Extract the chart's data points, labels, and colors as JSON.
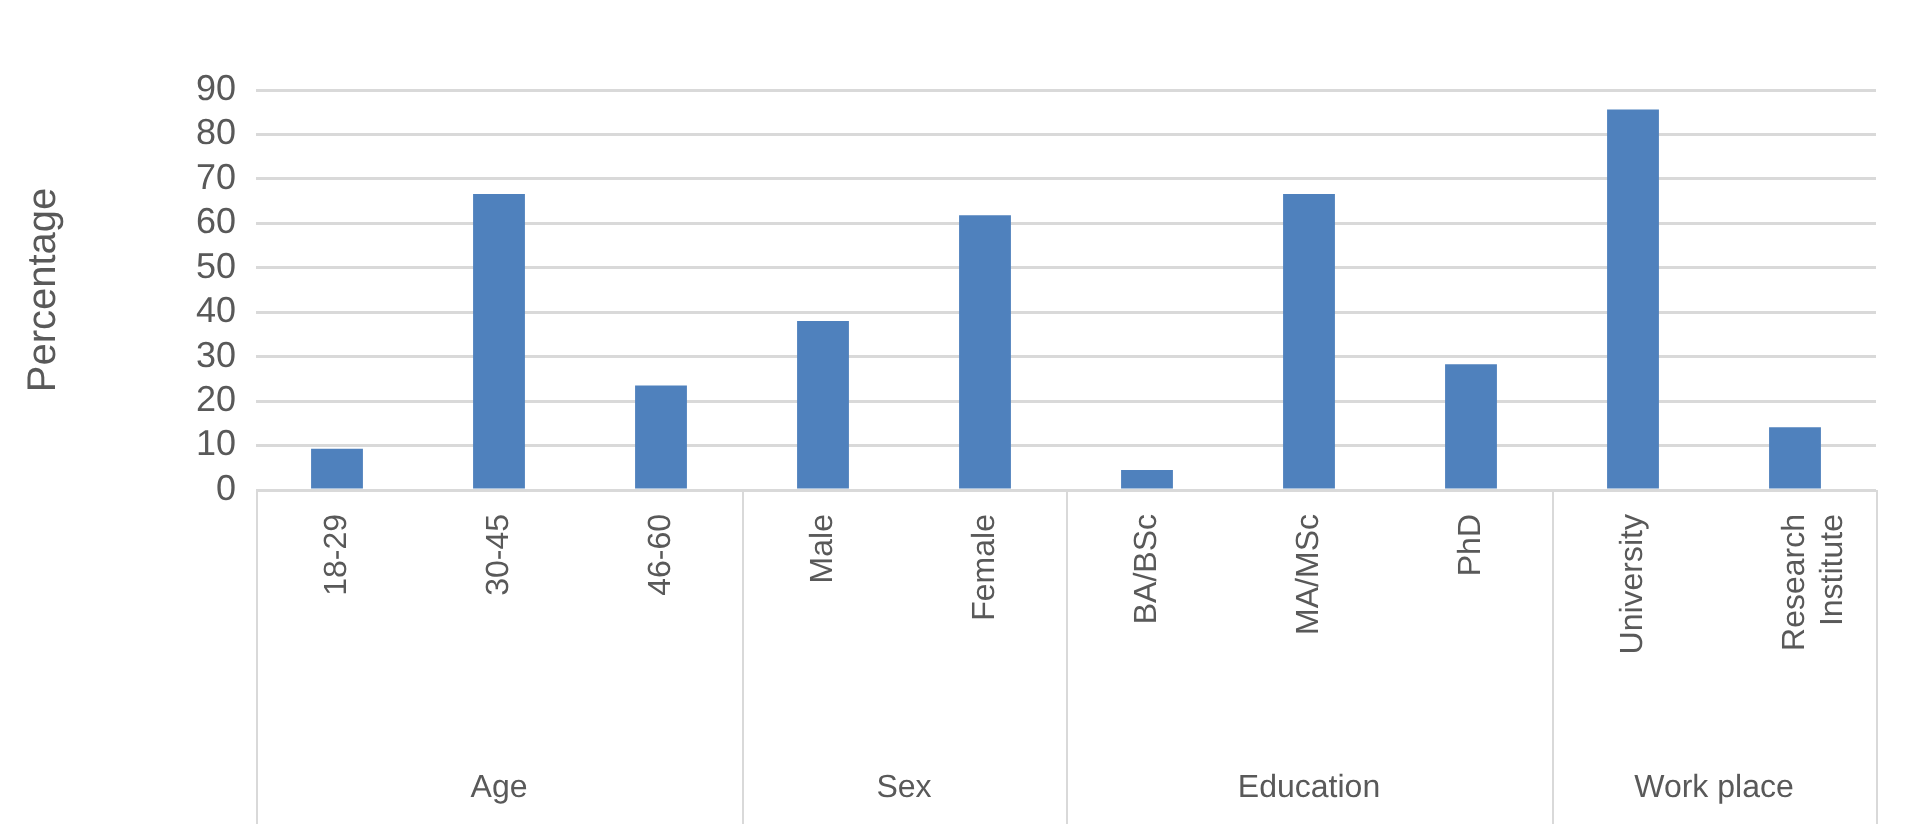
{
  "chart_data": {
    "type": "bar",
    "ylabel": "Percentage",
    "categories": [
      "18-29",
      "30-45",
      "46-60",
      "Male",
      "Female",
      "BA/BSc",
      "MA/MSc",
      "PhD",
      "University",
      "Research Institute"
    ],
    "values": [
      9.3,
      66.6,
      23.5,
      38,
      61.8,
      4.5,
      66.6,
      28.3,
      85.6,
      14.1
    ],
    "color": "#4f81bd",
    "ylim": [
      0,
      90
    ],
    "yticks": [
      0,
      10,
      20,
      30,
      40,
      50,
      60,
      70,
      80,
      90
    ],
    "grid": "y",
    "legend": false,
    "annotations": [
      "Age",
      "Sex",
      "Education",
      "Work place"
    ]
  }
}
